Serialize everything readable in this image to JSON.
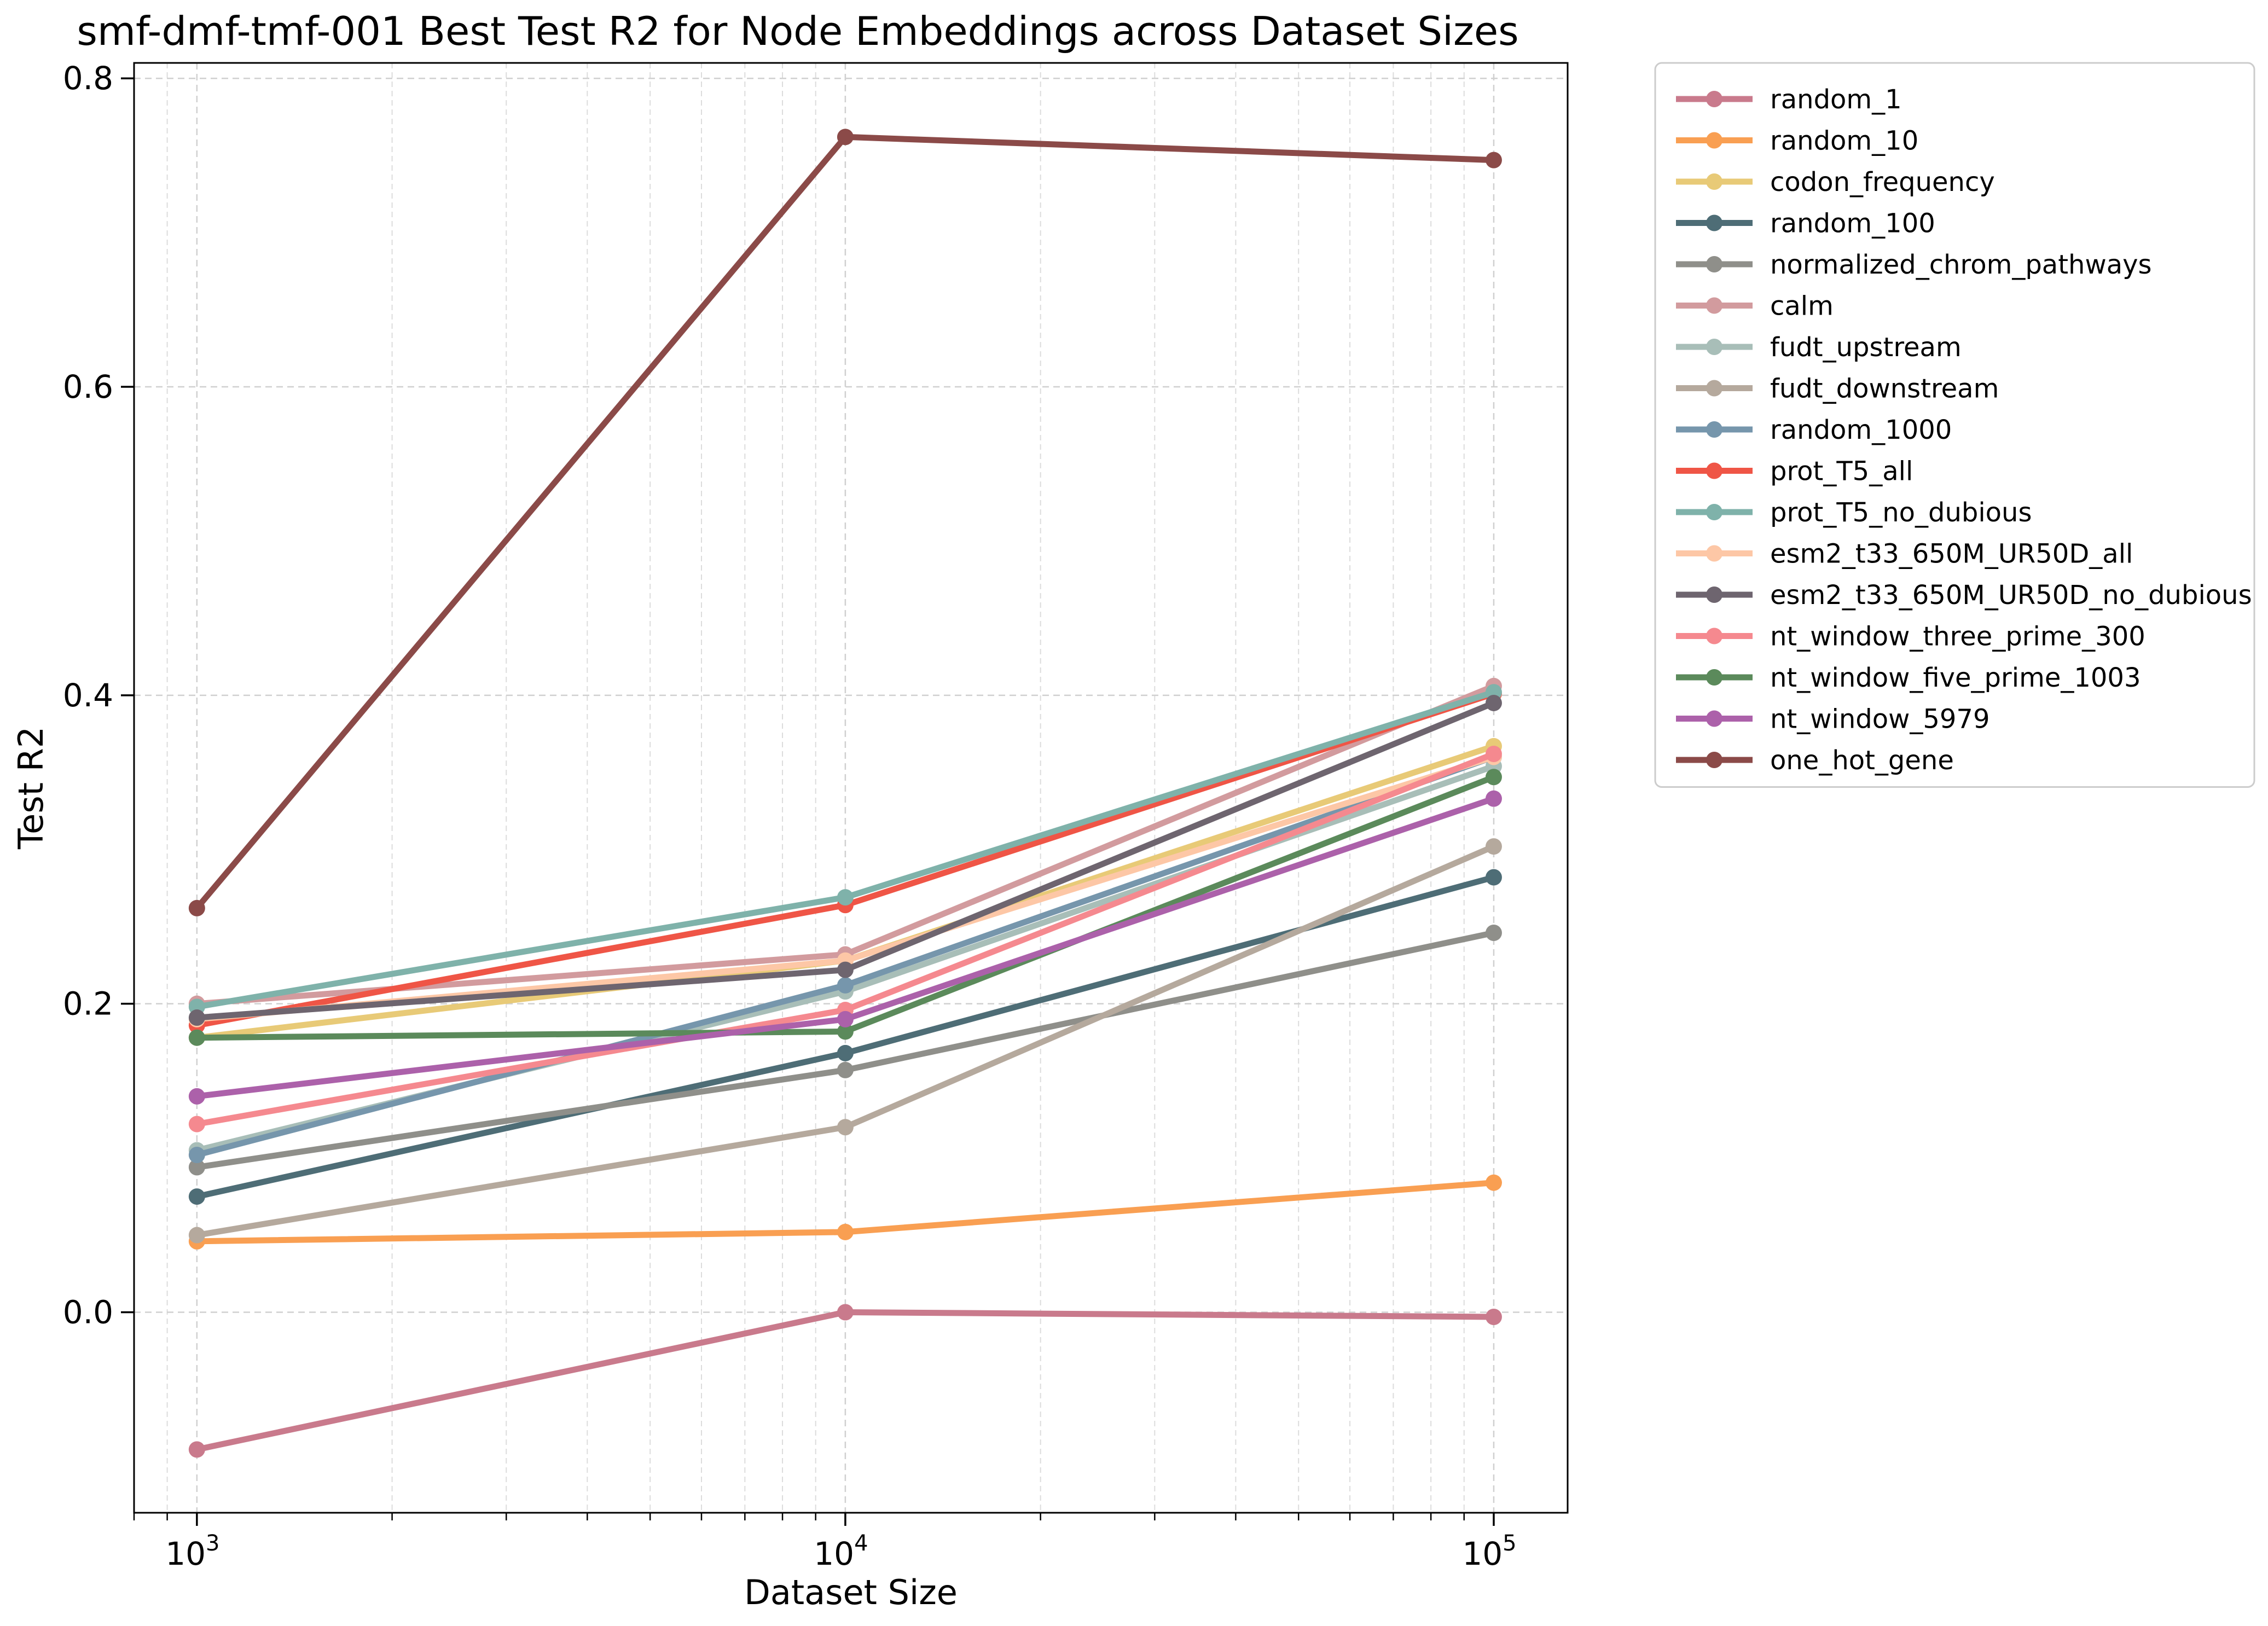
{
  "chart_data": {
    "type": "line",
    "title": "smf-dmf-tmf-001 Best Test R2 for Node Embeddings across Dataset Sizes",
    "xlabel": "Dataset Size",
    "ylabel": "Test R2",
    "xscale": "log",
    "xlim": [
      800,
      130000
    ],
    "ylim": [
      -0.13,
      0.81
    ],
    "grid": true,
    "legend_placement": "outside-right-top",
    "x": [
      1000,
      10000,
      100000
    ],
    "xticks": [
      {
        "value": 1000,
        "base": "10",
        "exp": "3"
      },
      {
        "value": 10000,
        "base": "10",
        "exp": "4"
      },
      {
        "value": 100000,
        "base": "10",
        "exp": "5"
      }
    ],
    "yticks": [
      {
        "value": 0.0,
        "label": "0.0"
      },
      {
        "value": 0.2,
        "label": "0.2"
      },
      {
        "value": 0.4,
        "label": "0.4"
      },
      {
        "value": 0.6,
        "label": "0.6"
      },
      {
        "value": 0.8,
        "label": "0.8"
      }
    ],
    "series": [
      {
        "name": "random_1",
        "color": "#c97a8c",
        "values": [
          -0.089,
          0.0,
          -0.003
        ]
      },
      {
        "name": "random_10",
        "color": "#f99f52",
        "values": [
          0.046,
          0.052,
          0.084
        ]
      },
      {
        "name": "codon_frequency",
        "color": "#e8ca77",
        "values": [
          0.178,
          0.228,
          0.367
        ]
      },
      {
        "name": "random_100",
        "color": "#4e6d76",
        "values": [
          0.075,
          0.168,
          0.282
        ]
      },
      {
        "name": "normalized_chrom_pathways",
        "color": "#8f8f8a",
        "values": [
          0.094,
          0.157,
          0.246
        ]
      },
      {
        "name": "calm",
        "color": "#d29b9e",
        "values": [
          0.2,
          0.232,
          0.406
        ]
      },
      {
        "name": "fudt_upstream",
        "color": "#a8beb8",
        "values": [
          0.105,
          0.208,
          0.354
        ]
      },
      {
        "name": "fudt_downstream",
        "color": "#b5a99d",
        "values": [
          0.05,
          0.12,
          0.302
        ]
      },
      {
        "name": "random_1000",
        "color": "#7696ac",
        "values": [
          0.102,
          0.212,
          0.36
        ]
      },
      {
        "name": "prot_T5_all",
        "color": "#ef5546",
        "values": [
          0.186,
          0.264,
          0.401
        ]
      },
      {
        "name": "prot_T5_no_dubious",
        "color": "#7fb2aa",
        "values": [
          0.198,
          0.269,
          0.402
        ]
      },
      {
        "name": "esm2_t33_650M_UR50D_all",
        "color": "#fdc7a6",
        "values": [
          0.19,
          0.228,
          0.36
        ]
      },
      {
        "name": "esm2_t33_650M_UR50D_no_dubious",
        "color": "#6e656f",
        "values": [
          0.191,
          0.222,
          0.395
        ]
      },
      {
        "name": "nt_window_three_prime_300",
        "color": "#f5898f",
        "values": [
          0.122,
          0.196,
          0.362
        ]
      },
      {
        "name": "nt_window_five_prime_1003",
        "color": "#5b8a5b",
        "values": [
          0.178,
          0.182,
          0.347
        ]
      },
      {
        "name": "nt_window_5979",
        "color": "#ac61aa",
        "values": [
          0.14,
          0.19,
          0.333
        ]
      },
      {
        "name": "one_hot_gene",
        "color": "#8b4a48",
        "values": [
          0.262,
          0.762,
          0.747
        ]
      }
    ]
  }
}
